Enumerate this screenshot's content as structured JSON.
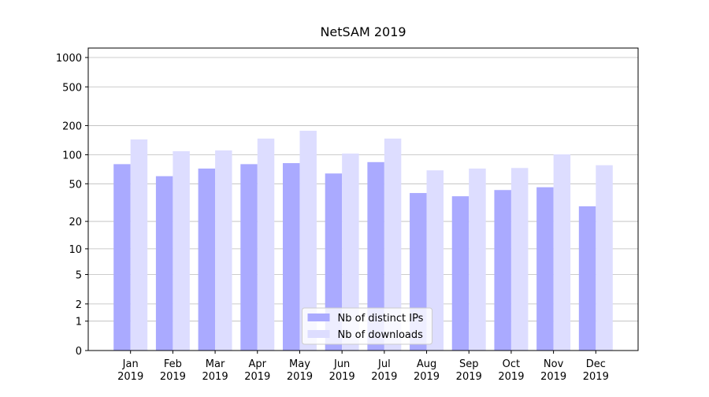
{
  "chart_data": {
    "type": "bar",
    "title": "NetSAM 2019",
    "categories": [
      "Jan\n2019",
      "Feb\n2019",
      "Mar\n2019",
      "Apr\n2019",
      "May\n2019",
      "Jun\n2019",
      "Jul\n2019",
      "Aug\n2019",
      "Sep\n2019",
      "Oct\n2019",
      "Nov\n2019",
      "Dec\n2019"
    ],
    "series": [
      {
        "name": "Nb of distinct IPs",
        "color": "#aaaaff",
        "values": [
          80,
          60,
          72,
          80,
          82,
          64,
          84,
          40,
          37,
          43,
          46,
          29
        ]
      },
      {
        "name": "Nb of downloads",
        "color": "#ddddff",
        "values": [
          144,
          109,
          111,
          147,
          177,
          103,
          147,
          69,
          72,
          73,
          101,
          78
        ]
      }
    ],
    "y_scale": "log1p",
    "ylim": [
      0,
      1250
    ],
    "yticks": [
      0,
      1,
      2,
      5,
      10,
      20,
      50,
      100,
      200,
      500,
      1000
    ],
    "grid": true,
    "legend": "lower center"
  }
}
